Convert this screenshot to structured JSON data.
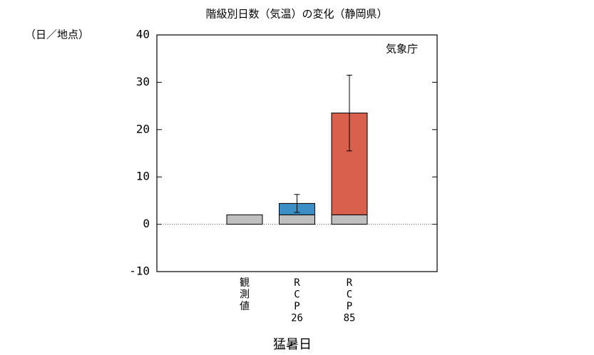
{
  "chart_data": {
    "type": "stacked-bar",
    "title": "階級別日数（気温）の変化（静岡県）",
    "y_label": "（日／地点）",
    "annotation": "気象庁",
    "x_label": "猛暑日",
    "categories": [
      [
        "観",
        "測",
        "値"
      ],
      [
        "R",
        "C",
        "P",
        "26"
      ],
      [
        "R",
        "C",
        "P",
        "85"
      ]
    ],
    "series": [
      {
        "colors": [
          "#bfbfbf",
          "#bfbfbf",
          "#bfbfbf"
        ],
        "values": [
          2.0,
          2.0,
          2.0
        ]
      },
      {
        "colors": [
          null,
          "#3b8fc4",
          "#d9604c"
        ],
        "values": [
          null,
          2.4,
          21.5
        ],
        "errors": [
          null,
          1.9,
          8.0
        ]
      }
    ],
    "ylim": [
      -10,
      40
    ],
    "yticks": [
      -10,
      0,
      10,
      20,
      30,
      40
    ],
    "zero_line": true
  }
}
